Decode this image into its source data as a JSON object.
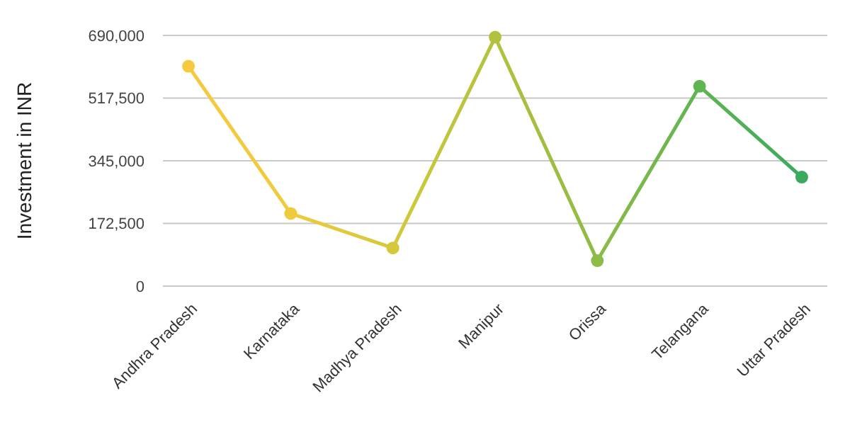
{
  "chart_data": {
    "type": "line",
    "ylabel": "Investment in INR",
    "categories": [
      "Andhra Pradesh",
      "Karnataka",
      "Madhya Pradesh",
      "Manipur",
      "Orissa",
      "Telangana",
      "Uttar Pradesh"
    ],
    "series": [
      {
        "values": [
          605000,
          200000,
          105000,
          685000,
          70000,
          550000,
          300000
        ],
        "colors": [
          "#f6c93f",
          "#eecb3c",
          "#d4c93a",
          "#b2c23d",
          "#8dbb45",
          "#5eb552",
          "#3aaa5c"
        ]
      }
    ],
    "ylim": [
      0,
      690000
    ],
    "yticks": [
      {
        "value": 0,
        "label": "0"
      },
      {
        "value": 172500,
        "label": "172,500"
      },
      {
        "value": 345000,
        "label": "345,000"
      },
      {
        "value": 517500,
        "label": "517,500"
      },
      {
        "value": 690000,
        "label": "690,000"
      }
    ],
    "grid": "y",
    "marker": "circle",
    "line_style": "solid"
  }
}
